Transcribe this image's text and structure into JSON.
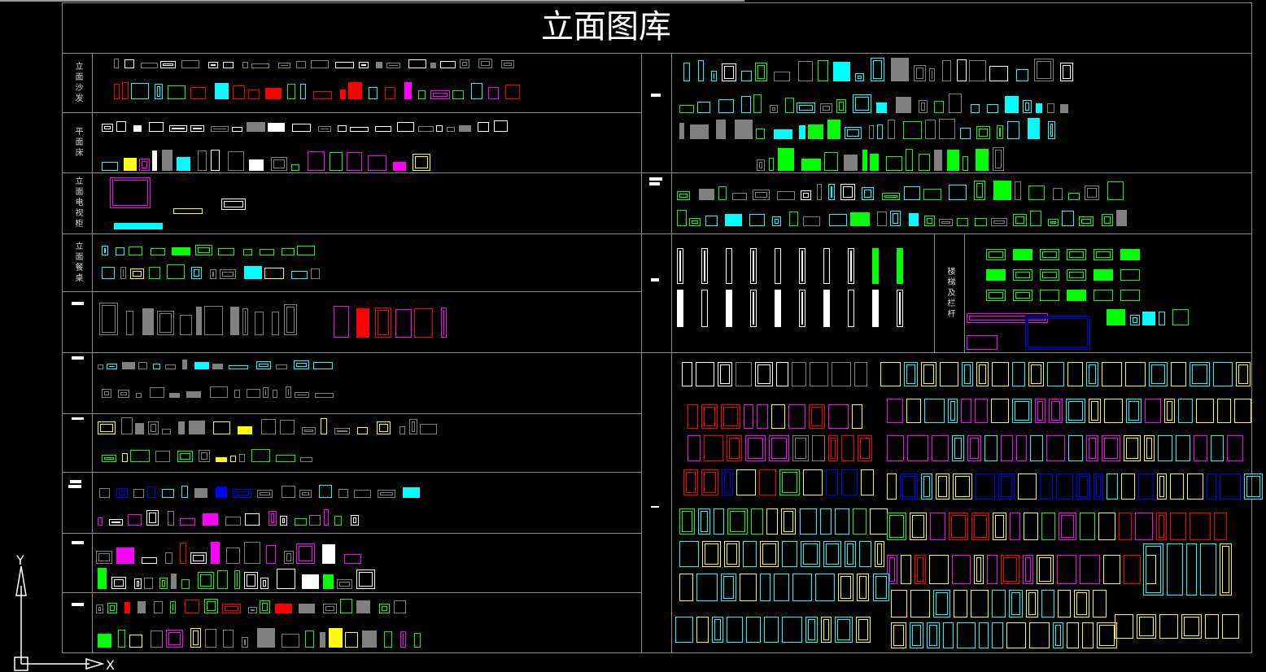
{
  "drawing": {
    "title": "立面图库",
    "left_sections": [
      {
        "label": "立面沙发"
      },
      {
        "label": "平面床"
      },
      {
        "label": "立面电视柜"
      },
      {
        "label": "立面餐桌"
      },
      {
        "label": ""
      },
      {
        "label": ""
      },
      {
        "label": ""
      },
      {
        "label": ""
      },
      {
        "label": ""
      },
      {
        "label": ""
      }
    ],
    "right_sections": [
      {
        "label": ""
      },
      {
        "label": ""
      },
      {
        "label": ""
      },
      {
        "label": "楼梯及栏杆"
      },
      {
        "label": ""
      }
    ],
    "ucs": {
      "x_axis": "X",
      "y_axis": "Y"
    }
  },
  "colors": {
    "background": "#000000",
    "frame": "#8c8c8c",
    "palette": [
      "#ffffff",
      "#808080",
      "#00ffff",
      "#ff00ff",
      "#ffff00",
      "#00ff00",
      "#ff0000",
      "#0000ff"
    ]
  }
}
